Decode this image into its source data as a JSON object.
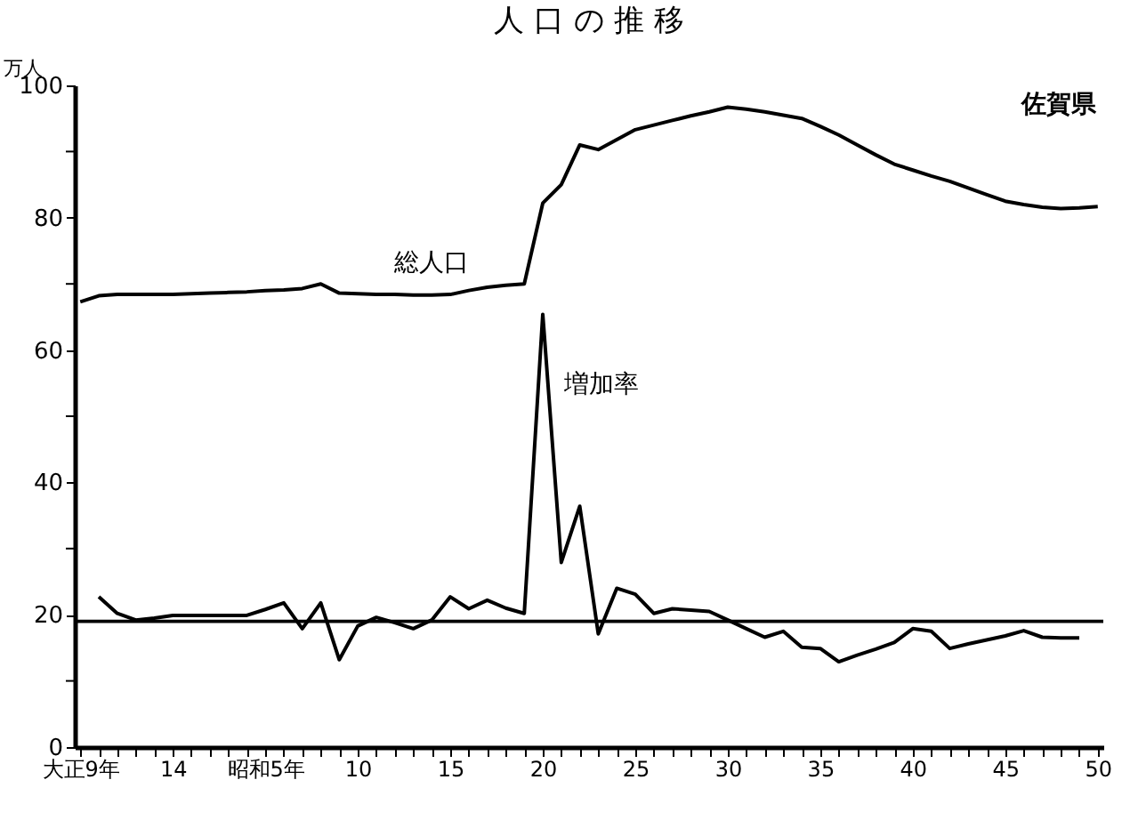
{
  "chart_data": {
    "type": "line",
    "title": "人 口 の 推 移",
    "ylabel": "万人",
    "annotations": [
      "佐賀県"
    ],
    "categories": [
      "大正9年",
      null,
      null,
      null,
      null,
      "14",
      null,
      null,
      null,
      null,
      "昭和5年",
      null,
      null,
      null,
      null,
      "10",
      null,
      null,
      null,
      null,
      "15",
      null,
      null,
      null,
      null,
      "20",
      null,
      null,
      null,
      null,
      "25",
      null,
      null,
      null,
      null,
      "30",
      null,
      null,
      null,
      null,
      "35",
      null,
      null,
      null,
      null,
      "40",
      null,
      null,
      null,
      null,
      "45",
      null,
      null,
      null,
      null,
      "50"
    ],
    "series": [
      {
        "name": "総人口",
        "color": "#000000",
        "values": [
          67.3,
          68.2,
          68.4,
          68.4,
          68.4,
          68.4,
          68.5,
          68.6,
          68.7,
          68.8,
          69.0,
          69.1,
          69.3,
          70.0,
          68.6,
          68.5,
          68.4,
          68.4,
          68.3,
          68.3,
          68.4,
          69.0,
          69.5,
          69.8,
          70.0,
          82.2,
          85.0,
          91.0,
          90.3,
          91.8,
          93.3,
          94.0,
          94.7,
          95.4,
          96.0,
          96.7,
          96.4,
          96.0,
          95.5,
          95.0,
          93.8,
          92.5,
          91.0,
          89.5,
          88.1,
          87.2,
          86.3,
          85.5,
          84.5,
          83.5,
          82.5,
          82.0,
          81.6,
          81.4,
          81.5,
          81.7
        ]
      },
      {
        "name": "増加率",
        "color": "#000000",
        "values": [
          null,
          22.7,
          20.2,
          19.2,
          19.5,
          19.9,
          19.9,
          19.9,
          19.9,
          19.9,
          20.8,
          21.8,
          17.9,
          21.8,
          13.2,
          18.3,
          19.6,
          18.8,
          17.9,
          19.2,
          22.7,
          20.9,
          22.2,
          21.0,
          20.2,
          65.4,
          27.9,
          36.4,
          17.1,
          24.0,
          23.1,
          20.2,
          20.9,
          20.7,
          20.5,
          19.2,
          17.9,
          16.6,
          17.5,
          15.1,
          14.9,
          12.9,
          13.9,
          14.8,
          15.8,
          17.9,
          17.5,
          14.9,
          15.6,
          16.2,
          16.8,
          17.6,
          16.6,
          16.5,
          16.5,
          null
        ]
      }
    ],
    "ref_lines": [
      {
        "axis": "y",
        "value": 19
      }
    ],
    "ylim": [
      0,
      100
    ],
    "yticks": [
      0,
      {
        "value": 10,
        "label": null
      },
      20,
      {
        "value": 30,
        "label": null
      },
      40,
      {
        "value": 50,
        "label": null
      },
      60,
      {
        "value": 70,
        "label": null
      },
      80,
      {
        "value": 90,
        "label": null
      },
      100
    ],
    "grid": false,
    "legend": false,
    "marker": "none",
    "line_style": "solid"
  }
}
